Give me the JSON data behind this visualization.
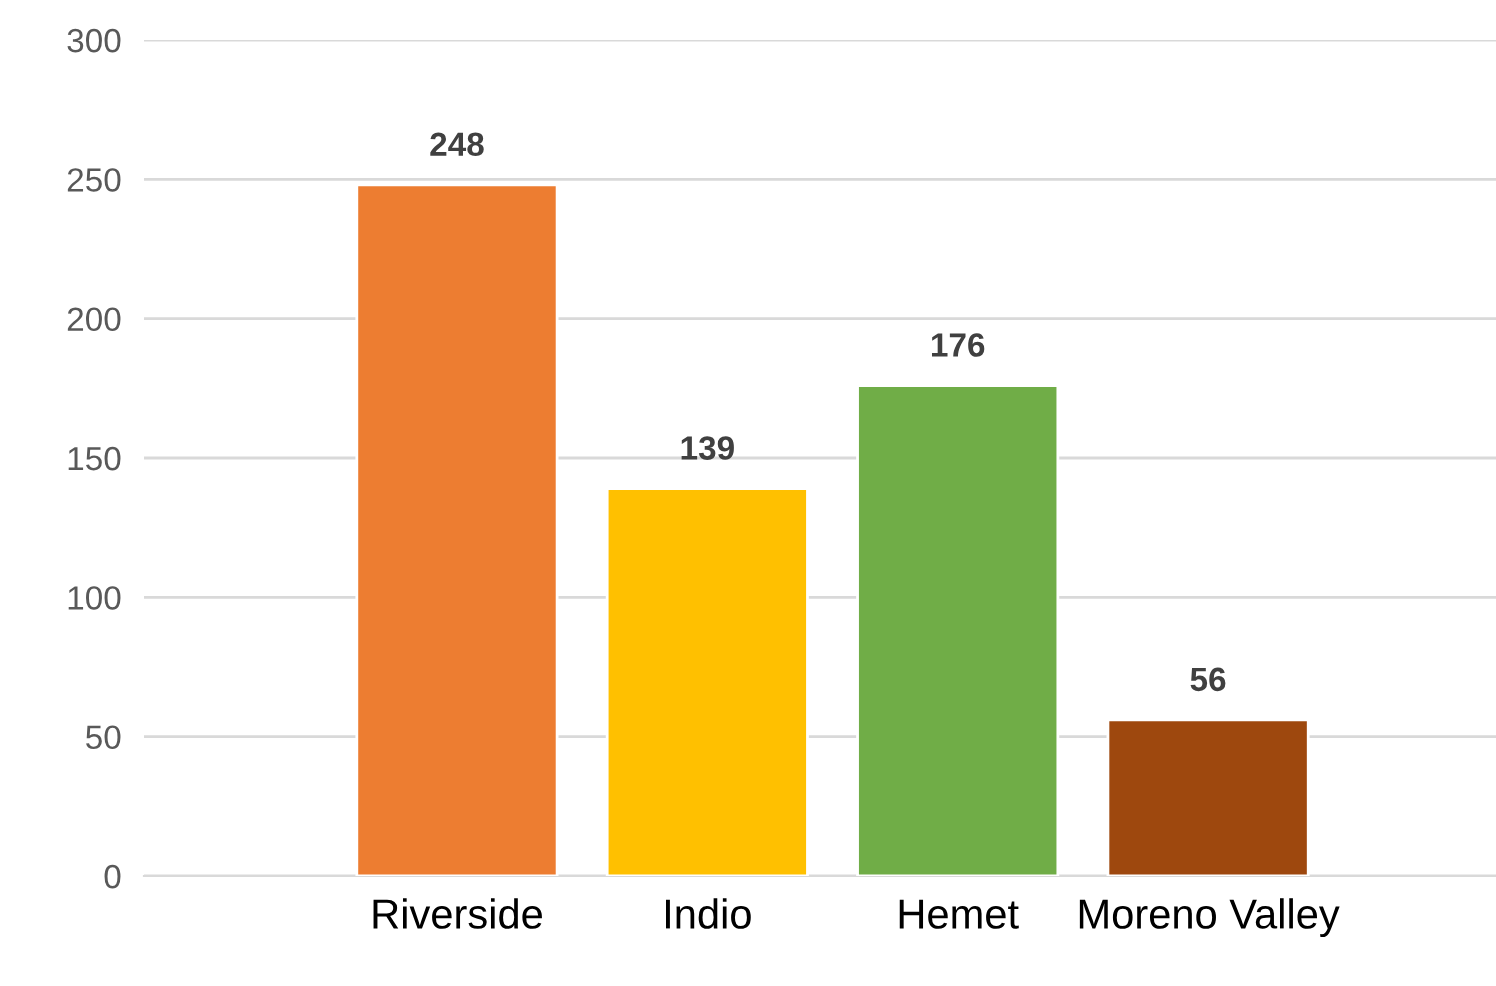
{
  "chart_data": {
    "type": "bar",
    "categories": [
      "Riverside",
      "Indio",
      "Hemet",
      "Moreno Valley"
    ],
    "values": [
      248,
      139,
      176,
      56
    ],
    "colors": [
      "#ed7d31",
      "#ffc000",
      "#70ad47",
      "#9e480e"
    ],
    "ylim": [
      0,
      300
    ],
    "yticks": [
      0,
      50,
      100,
      150,
      200,
      250,
      300
    ],
    "grid": "y",
    "data_labels": true,
    "legend": false
  }
}
